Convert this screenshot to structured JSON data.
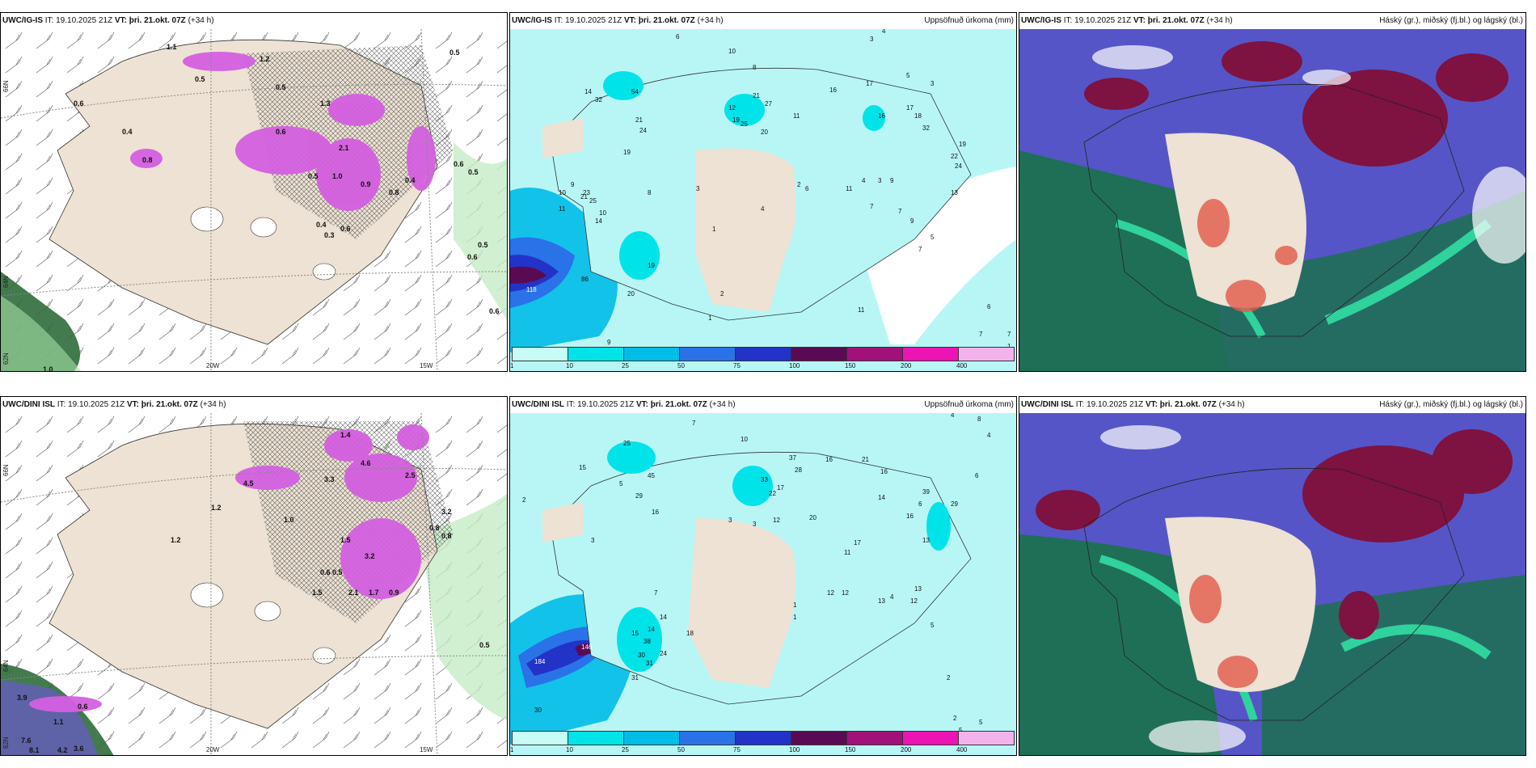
{
  "panels": [
    {
      "model": "UWC/IG-IS",
      "it_label": "IT:",
      "it": "19.10.2025 21Z",
      "vt_label": "VT:",
      "vt": "þri. 21.okt. 07Z",
      "lead": "(+34 h)",
      "subtitle": "",
      "lon_labels": [
        "20W",
        "15W"
      ],
      "lat_labels": [
        "66N",
        "64N",
        "62N"
      ],
      "values": [
        "0.5",
        "0.5",
        "0.5",
        "1.2",
        "1.1",
        "0.6",
        "0.4",
        "0.8",
        "1.3",
        "2.1",
        "0.5",
        "1.0",
        "0.9",
        "0.6",
        "0.4",
        "0.6",
        "0.8",
        "0.4",
        "0.3",
        "0.6",
        "0.5",
        "0.5",
        "0.6",
        "0.6",
        "1.0"
      ]
    },
    {
      "model": "UWC/IG-IS",
      "it_label": "IT:",
      "it": "19.10.2025 21Z",
      "vt_label": "VT:",
      "vt": "þri. 21.okt. 07Z",
      "lead": "(+34 h)",
      "subtitle": "Uppsöfnuð úrkoma (mm)",
      "values": [
        "6",
        "10",
        "8",
        "3",
        "4",
        "5",
        "14",
        "32",
        "54",
        "21",
        "24",
        "12",
        "19",
        "25",
        "21",
        "27",
        "20",
        "11",
        "16",
        "17",
        "16",
        "17",
        "18",
        "32",
        "19",
        "22",
        "24",
        "10",
        "11",
        "9",
        "21",
        "23",
        "25",
        "19",
        "19",
        "20",
        "11",
        "9",
        "3",
        "7",
        "5",
        "4",
        "3",
        "6",
        "7",
        "1",
        "1",
        "7",
        "7",
        "2",
        "9",
        "7",
        "6",
        "13",
        "11",
        "1",
        "9",
        "3",
        "2",
        "4",
        "10",
        "8",
        "14",
        "86",
        "118"
      ]
    },
    {
      "model": "UWC/IG-IS",
      "it_label": "IT:",
      "it": "19.10.2025 21Z",
      "vt_label": "VT:",
      "vt": "þri. 21.okt. 07Z",
      "lead": "(+34 h)",
      "subtitle": "Háský (gr.), miðský (fj.bl.) og lágský (bl.)"
    },
    {
      "model": "UWC/DINI ISL",
      "it_label": "IT:",
      "it": "19.10.2025 21Z",
      "vt_label": "VT:",
      "vt": "þri. 21.okt. 07Z",
      "lead": "(+34 h)",
      "subtitle": "",
      "lon_labels": [
        "20W",
        "15W"
      ],
      "lat_labels": [
        "66N",
        "64N",
        "62N"
      ],
      "values": [
        "1.4",
        "4.6",
        "3.3",
        "4.5",
        "1.2",
        "2.5",
        "1.0",
        "1.5",
        "3.2",
        "0.6",
        "0.5",
        "1.7",
        "1.5",
        "2.1",
        "0.9",
        "0.8",
        "0.8",
        "3.9",
        "4.2",
        "7.6",
        "8.1",
        "3.6",
        "0.5",
        "1.1",
        "3.2",
        "1.2",
        "0.6"
      ]
    },
    {
      "model": "UWC/DINI ISL",
      "it_label": "IT:",
      "it": "19.10.2025 21Z",
      "vt_label": "VT:",
      "vt": "þri. 21.okt. 07Z",
      "lead": "(+34 h)",
      "subtitle": "Uppsöfnuð úrkoma (mm)",
      "values": [
        "2",
        "7",
        "10",
        "4",
        "15",
        "25",
        "45",
        "16",
        "29",
        "33",
        "37",
        "28",
        "16",
        "21",
        "16",
        "39",
        "29",
        "22",
        "12",
        "17",
        "20",
        "14",
        "12",
        "16",
        "17",
        "13",
        "8",
        "11",
        "12",
        "13",
        "5",
        "6",
        "3",
        "4",
        "5",
        "2",
        "3",
        "1",
        "5",
        "14",
        "18",
        "38",
        "30",
        "24",
        "31",
        "31",
        "30",
        "184",
        "146",
        "1",
        "4",
        "14",
        "15",
        "13",
        "12",
        "7",
        "6",
        "5",
        "2",
        "3"
      ]
    },
    {
      "model": "UWC/DINI ISL",
      "it_label": "IT:",
      "it": "19.10.2025 21Z",
      "vt_label": "VT:",
      "vt": "þri. 21.okt. 07Z",
      "lead": "(+34 h)",
      "subtitle": "Háský (gr.), miðský (fj.bl.) og lágský (bl.)"
    }
  ],
  "colorbar": {
    "ticks": [
      "1",
      "10",
      "25",
      "50",
      "75",
      "100",
      "150",
      "200",
      "400"
    ],
    "colors": [
      "#c6fbf6",
      "#00e3e8",
      "#00bde8",
      "#2a72e8",
      "#2333c7",
      "#5a0a52",
      "#a0117a",
      "#ec14b4",
      "#f4b2ec"
    ]
  },
  "colors": {
    "land": "#ede2d3",
    "sea_precip": "#b8f6f6",
    "purple_precip": "#d060e0",
    "cloud_high": "#7e1240",
    "cloud_mid": "#5555c7",
    "cloud_low": "#1f6f57",
    "cloud_low_bright": "#2fd39b"
  }
}
